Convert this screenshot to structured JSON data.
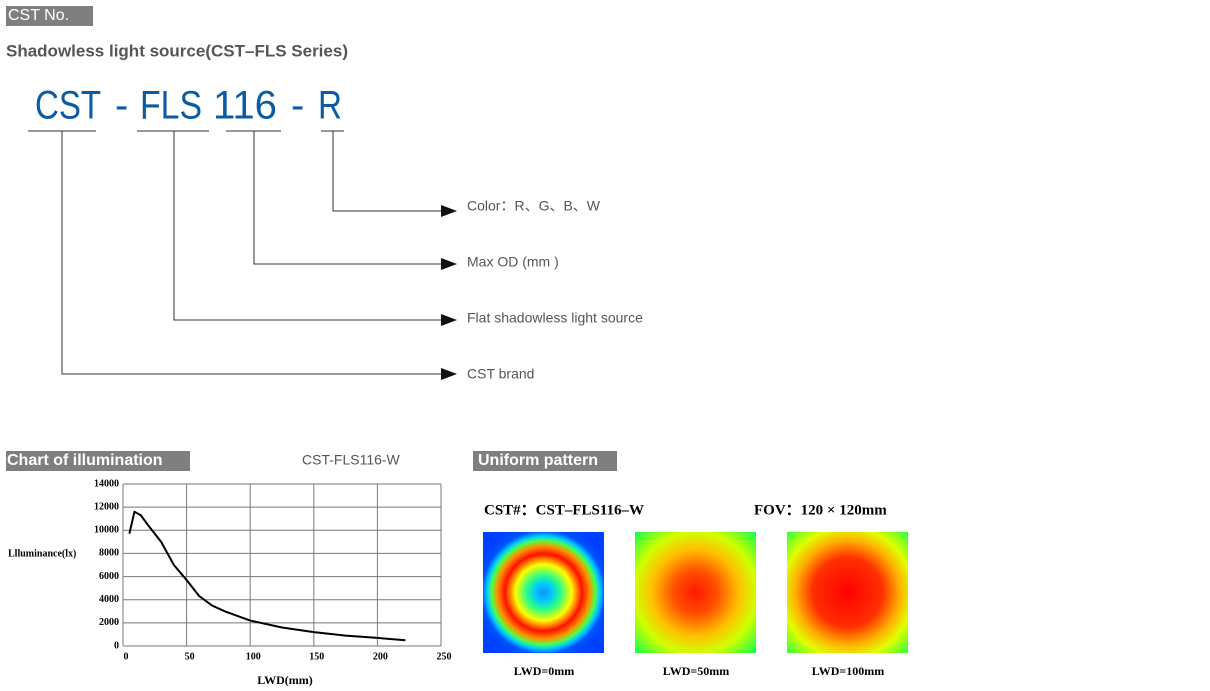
{
  "header": {
    "label": "CST No.",
    "title": "Shadowless light source(CST–FLS Series)"
  },
  "code": {
    "parts": [
      "CST",
      "-",
      "FLS",
      "116",
      "-",
      "R"
    ]
  },
  "legend": [
    "Color：R、G、B、W",
    "Max OD (mm )",
    "Flat shadowless light source",
    "CST brand"
  ],
  "illumination": {
    "label": "Chart of illumination"
  },
  "chart_data": {
    "type": "line",
    "title": "CST-FLS116-W",
    "x_label": "LWD(mm)",
    "y_label": "Llluminance(lx)",
    "x": [
      5,
      9,
      14,
      20,
      30,
      40,
      50,
      60,
      70,
      80,
      100,
      125,
      150,
      175,
      200,
      222
    ],
    "values": [
      9700,
      11600,
      11300,
      10400,
      9000,
      7000,
      5700,
      4300,
      3500,
      3000,
      2200,
      1600,
      1200,
      900,
      700,
      500
    ],
    "color": "#000000",
    "xlim": [
      0,
      250
    ],
    "ylim": [
      0,
      14000
    ],
    "xticks": [
      0,
      50,
      100,
      150,
      200,
      250
    ],
    "yticks": [
      0,
      2000,
      4000,
      6000,
      8000,
      10000,
      12000,
      14000
    ],
    "grid": true
  },
  "uniform": {
    "label": "Uniform pattern",
    "model": "CST#：CST–FLS116–W",
    "fov": "FOV：120 × 120mm",
    "patterns": [
      "LWD=0mm",
      "LWD=50mm",
      "LWD=100mm"
    ]
  }
}
